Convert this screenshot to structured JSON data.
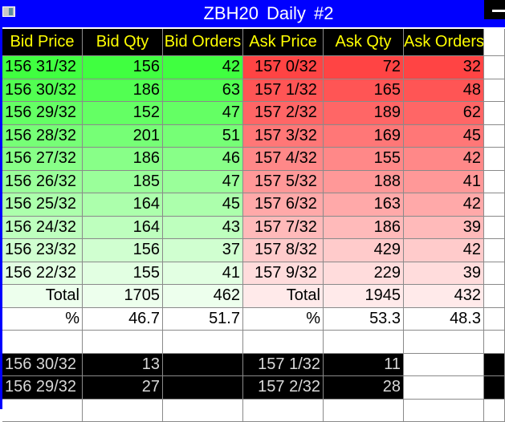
{
  "window": {
    "title": "ZBH20  Daily  #2"
  },
  "colors": {
    "titlebar": "#0000ff",
    "header_bg": "#000000",
    "header_text": "#ffff00"
  },
  "columns": [
    "Bid Price",
    "Bid Qty",
    "Bid Orders",
    "Ask Price",
    "Ask Qty",
    "Ask Orders"
  ],
  "rows": [
    {
      "bid_price": "156 31/32",
      "bid_qty": "156",
      "bid_orders": "42",
      "ask_price": "157 0/32",
      "ask_qty": "72",
      "ask_orders": "32"
    },
    {
      "bid_price": "156 30/32",
      "bid_qty": "186",
      "bid_orders": "63",
      "ask_price": "157 1/32",
      "ask_qty": "165",
      "ask_orders": "48"
    },
    {
      "bid_price": "156 29/32",
      "bid_qty": "152",
      "bid_orders": "47",
      "ask_price": "157 2/32",
      "ask_qty": "189",
      "ask_orders": "62"
    },
    {
      "bid_price": "156 28/32",
      "bid_qty": "201",
      "bid_orders": "51",
      "ask_price": "157 3/32",
      "ask_qty": "169",
      "ask_orders": "45"
    },
    {
      "bid_price": "156 27/32",
      "bid_qty": "186",
      "bid_orders": "46",
      "ask_price": "157 4/32",
      "ask_qty": "155",
      "ask_orders": "42"
    },
    {
      "bid_price": "156 26/32",
      "bid_qty": "185",
      "bid_orders": "47",
      "ask_price": "157 5/32",
      "ask_qty": "188",
      "ask_orders": "41"
    },
    {
      "bid_price": "156 25/32",
      "bid_qty": "164",
      "bid_orders": "45",
      "ask_price": "157 6/32",
      "ask_qty": "163",
      "ask_orders": "42"
    },
    {
      "bid_price": "156 24/32",
      "bid_qty": "164",
      "bid_orders": "43",
      "ask_price": "157 7/32",
      "ask_qty": "186",
      "ask_orders": "39"
    },
    {
      "bid_price": "156 23/32",
      "bid_qty": "156",
      "bid_orders": "37",
      "ask_price": "157 8/32",
      "ask_qty": "429",
      "ask_orders": "42"
    },
    {
      "bid_price": "156 22/32",
      "bid_qty": "155",
      "bid_orders": "41",
      "ask_price": "157 9/32",
      "ask_qty": "229",
      "ask_orders": "39"
    }
  ],
  "total": {
    "bid_label": "Total",
    "bid_qty": "1705",
    "bid_orders": "462",
    "ask_label": "Total",
    "ask_qty": "1945",
    "ask_orders": "432"
  },
  "percent": {
    "bid_label": "%",
    "bid_qty": "46.7",
    "bid_orders": "51.7",
    "ask_label": "%",
    "ask_qty": "53.3",
    "ask_orders": "48.3"
  },
  "trades": [
    {
      "bid_price": "156 30/32",
      "bid_qty": "13",
      "ask_price": "157 1/32",
      "ask_qty": "11"
    },
    {
      "bid_price": "156 29/32",
      "bid_qty": "27",
      "ask_price": "157 2/32",
      "ask_qty": "28"
    }
  ]
}
